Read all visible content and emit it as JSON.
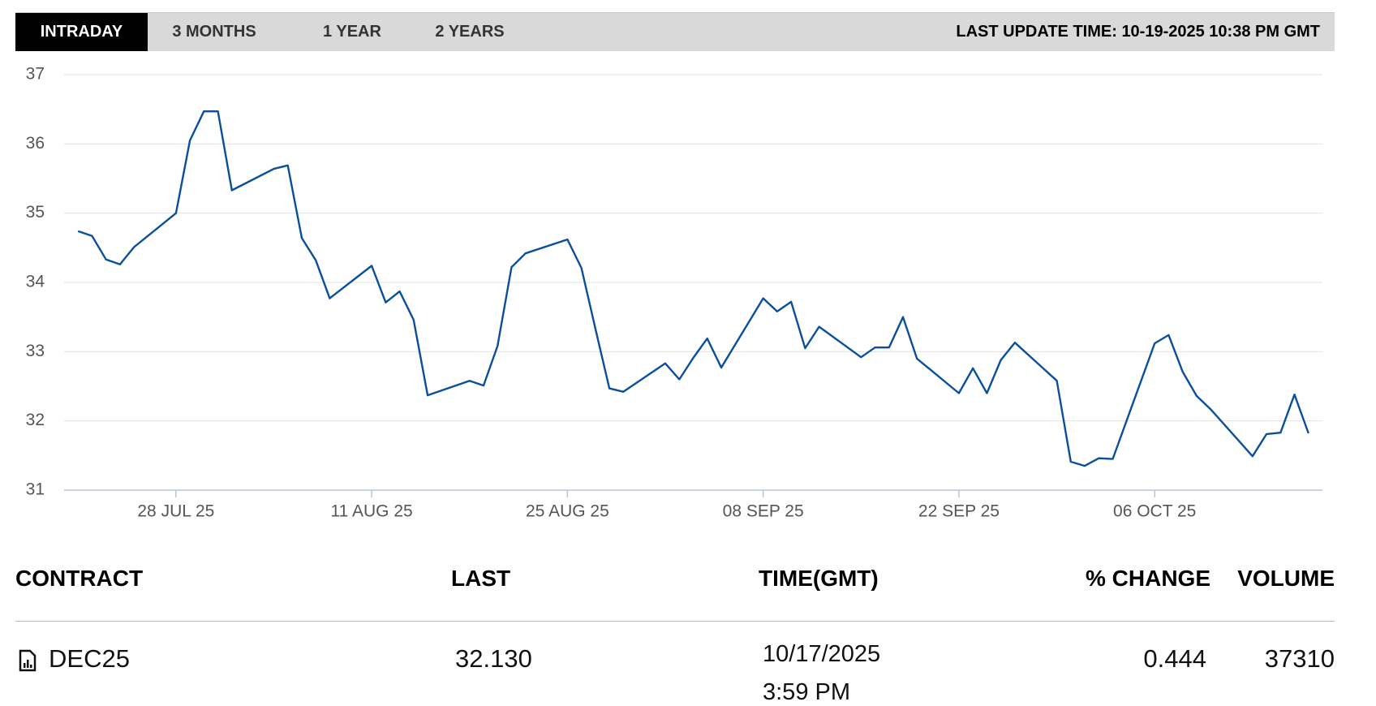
{
  "tabs": [
    "INTRADAY",
    "3 MONTHS",
    "1 YEAR",
    "2 YEARS"
  ],
  "last_update": "LAST UPDATE TIME: 10-19-2025 10:38 PM GMT",
  "chart_data": {
    "type": "line",
    "color": "#0b4f9c",
    "grid": true,
    "x": [
      "2025-07-21",
      "2025-07-22",
      "2025-07-23",
      "2025-07-24",
      "2025-07-25",
      "2025-07-28",
      "2025-07-29",
      "2025-07-30",
      "2025-07-31",
      "2025-08-01",
      "2025-08-04",
      "2025-08-05",
      "2025-08-06",
      "2025-08-07",
      "2025-08-08",
      "2025-08-11",
      "2025-08-12",
      "2025-08-13",
      "2025-08-14",
      "2025-08-15",
      "2025-08-18",
      "2025-08-19",
      "2025-08-20",
      "2025-08-21",
      "2025-08-22",
      "2025-08-25",
      "2025-08-26",
      "2025-08-27",
      "2025-08-28",
      "2025-08-29",
      "2025-09-01",
      "2025-09-02",
      "2025-09-03",
      "2025-09-04",
      "2025-09-05",
      "2025-09-08",
      "2025-09-09",
      "2025-09-10",
      "2025-09-11",
      "2025-09-12",
      "2025-09-15",
      "2025-09-16",
      "2025-09-17",
      "2025-09-18",
      "2025-09-19",
      "2025-09-22",
      "2025-09-23",
      "2025-09-24",
      "2025-09-25",
      "2025-09-26",
      "2025-09-29",
      "2025-09-30",
      "2025-10-01",
      "2025-10-02",
      "2025-10-03",
      "2025-10-06",
      "2025-10-07",
      "2025-10-08",
      "2025-10-09",
      "2025-10-10",
      "2025-10-13",
      "2025-10-14",
      "2025-10-15",
      "2025-10-16",
      "2025-10-17"
    ],
    "values": [
      34.74,
      34.67,
      34.33,
      34.26,
      34.51,
      35.0,
      36.05,
      36.47,
      36.47,
      35.33,
      35.64,
      35.69,
      34.64,
      34.32,
      33.77,
      34.24,
      33.71,
      33.87,
      33.46,
      32.37,
      32.58,
      32.51,
      33.08,
      34.22,
      34.42,
      34.62,
      34.21,
      33.33,
      32.47,
      32.42,
      32.83,
      32.6,
      32.91,
      33.19,
      32.77,
      33.77,
      33.58,
      33.72,
      33.05,
      33.36,
      32.92,
      33.06,
      33.06,
      33.5,
      32.9,
      32.4,
      32.76,
      32.4,
      32.88,
      33.13,
      32.58,
      31.41,
      31.35,
      31.46,
      31.45,
      33.12,
      33.24,
      32.71,
      32.36,
      32.17,
      31.49,
      31.81,
      31.83,
      32.38,
      31.82
    ],
    "xlim": [
      "2025-07-20",
      "2025-10-18"
    ],
    "xticks": [
      {
        "value": "2025-07-28",
        "label": "28 JUL 25"
      },
      {
        "value": "2025-08-11",
        "label": "11 AUG 25"
      },
      {
        "value": "2025-08-25",
        "label": "25 AUG 25"
      },
      {
        "value": "2025-09-08",
        "label": "08 SEP 25"
      },
      {
        "value": "2025-09-22",
        "label": "22 SEP 25"
      },
      {
        "value": "2025-10-06",
        "label": "06 OCT 25"
      }
    ],
    "ylim": [
      31,
      37
    ],
    "yticks": [
      31,
      32,
      33,
      34,
      35,
      36,
      37
    ]
  },
  "table": {
    "columns": [
      "CONTRACT",
      "LAST",
      "TIME(GMT)",
      "% CHANGE",
      "VOLUME"
    ],
    "rows": [
      [
        "DEC25",
        "32.130",
        [
          "10/17/2025",
          "3:59 PM"
        ],
        "0.444",
        "37310"
      ]
    ]
  }
}
